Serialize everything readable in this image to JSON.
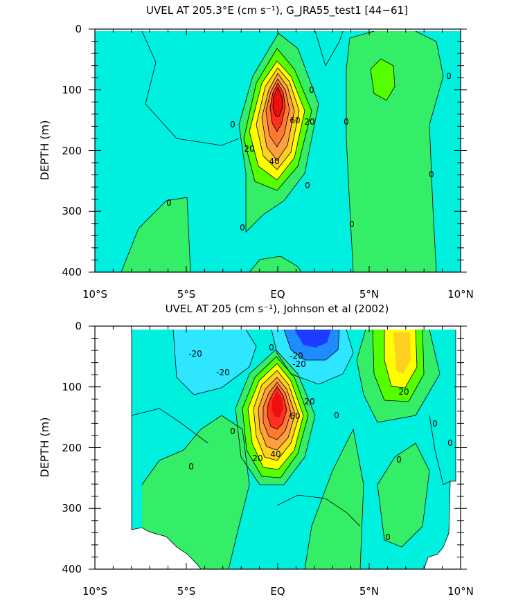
{
  "chart_data": [
    {
      "type": "contour",
      "title": "UVEL AT 205.3°E (cm s⁻¹), G_JRA55_test1 [44−61]",
      "xlabel": "",
      "ylabel": "DEPTH (m)",
      "xlim": [
        -10,
        10
      ],
      "ylim": [
        400,
        0
      ],
      "x_ticks": [
        "10°S",
        "5°S",
        "EQ",
        "5°N",
        "10°N"
      ],
      "y_ticks": [
        "0",
        "100",
        "200",
        "300",
        "400"
      ],
      "contour_labels": [
        "0",
        "0",
        "0",
        "0",
        "0",
        "0",
        "0",
        "0",
        "0",
        "20",
        "20",
        "40",
        "60"
      ],
      "core_max_cm_s": 100,
      "core_lat": 0,
      "core_depth_m": 130
    },
    {
      "type": "contour",
      "title": "UVEL AT 205 (cm s⁻¹), Johnson et al (2002)",
      "xlabel": "",
      "ylabel": "DEPTH (m)",
      "xlim": [
        -10,
        10
      ],
      "ylim": [
        400,
        0
      ],
      "x_ticks": [
        "10°S",
        "5°S",
        "EQ",
        "5°N",
        "10°N"
      ],
      "y_ticks": [
        "0",
        "100",
        "200",
        "300",
        "400"
      ],
      "contour_labels": [
        "-20",
        "-20",
        "0",
        "-20",
        "-20",
        "20",
        "60",
        "40",
        "20",
        "0",
        "20",
        "0",
        "0",
        "0",
        "0",
        "0",
        "0"
      ],
      "core_max_cm_s": 100,
      "core_lat": 0,
      "core_depth_m": 130
    }
  ],
  "colors": {
    "neg_strong": "#1c3cff",
    "neg_mid": "#1e8cff",
    "neg_light": "#2ee6ff",
    "near_zero": "#00f0e0",
    "pos_light": "#33ee66",
    "pos_mid": "#55ff00",
    "yellow": "#ffff00",
    "yellow_orange": "#ffd020",
    "orange": "#ffa040",
    "orange_dark": "#ff7a30",
    "red": "#ff3020",
    "red_core": "#ee1010"
  }
}
